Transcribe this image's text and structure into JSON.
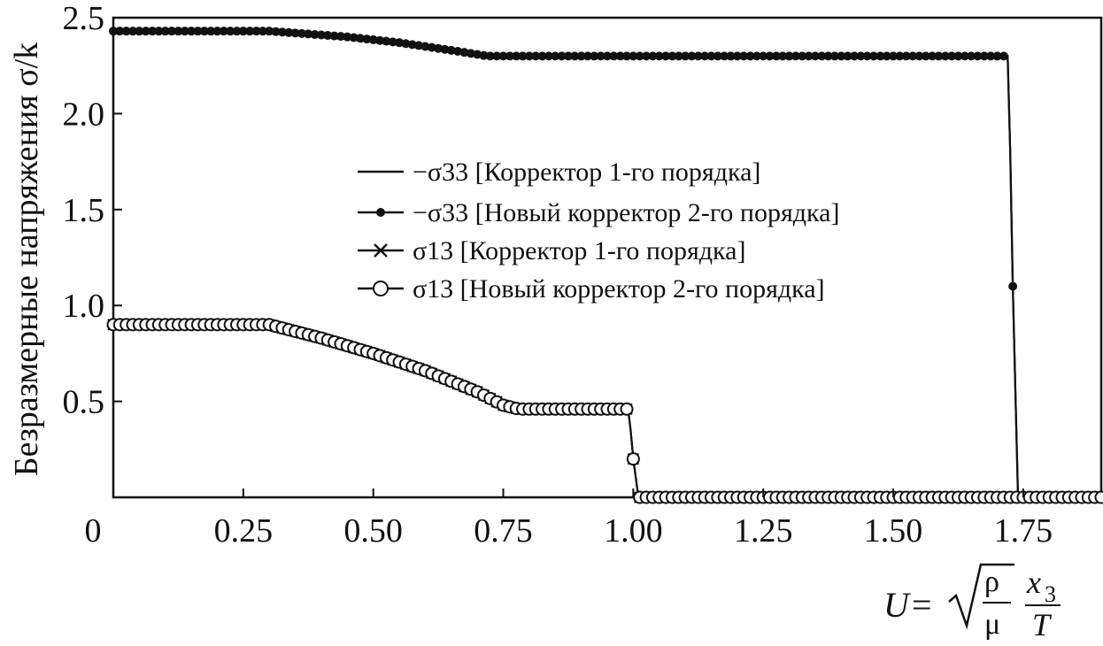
{
  "chart_data": {
    "type": "line",
    "xlabel": "U = √(ρ/μ) · x₃/T",
    "ylabel": "Безразмерные напряжения σ/k",
    "xlim": [
      0,
      1.9
    ],
    "ylim": [
      0,
      2.5
    ],
    "x_ticks": [
      "0",
      "0.25",
      "0.50",
      "0.75",
      "1.00",
      "1.25",
      "1.50",
      "1.75"
    ],
    "x_tick_values": [
      0,
      0.25,
      0.5,
      0.75,
      1.0,
      1.25,
      1.5,
      1.75
    ],
    "y_ticks": [
      "0.5",
      "1.0",
      "1.5",
      "2.0",
      "2.5"
    ],
    "y_tick_values": [
      0.5,
      1.0,
      1.5,
      2.0,
      2.5
    ],
    "grid": false,
    "legend_position": "center",
    "series": [
      {
        "name": "−σ33 [Корректор 1-го порядка]",
        "marker": "none",
        "x": [
          0,
          0.3,
          0.35,
          0.45,
          0.55,
          0.65,
          0.72,
          0.77,
          0.8,
          1.0,
          1.5,
          1.72,
          1.725,
          1.73,
          1.74,
          1.9
        ],
        "y": [
          2.43,
          2.43,
          2.42,
          2.4,
          2.37,
          2.33,
          2.3,
          2.3,
          2.3,
          2.3,
          2.3,
          2.3,
          1.8,
          1.1,
          0.0,
          0.0
        ]
      },
      {
        "name": "−σ33 [Новый корректор 2-го порядка]",
        "marker": "filled-circle",
        "x": [
          0,
          0.3,
          0.35,
          0.45,
          0.55,
          0.65,
          0.72,
          0.77,
          0.8,
          1.0,
          1.5,
          1.72,
          1.725,
          1.73,
          1.74,
          1.9
        ],
        "y": [
          2.43,
          2.43,
          2.42,
          2.4,
          2.37,
          2.33,
          2.3,
          2.3,
          2.3,
          2.3,
          2.3,
          2.3,
          1.8,
          1.1,
          0.0,
          0.0
        ]
      },
      {
        "name": "σ13 [Корректор 1-го порядка]",
        "marker": "cross",
        "x": [
          0,
          0.3,
          0.4,
          0.5,
          0.6,
          0.7,
          0.75,
          0.78,
          0.85,
          0.99,
          0.995,
          1.0,
          1.01,
          1.9
        ],
        "y": [
          0.9,
          0.9,
          0.83,
          0.75,
          0.66,
          0.55,
          0.48,
          0.46,
          0.46,
          0.46,
          0.35,
          0.2,
          0.0,
          0.0
        ]
      },
      {
        "name": "σ13 [Новый корректор 2-го порядка]",
        "marker": "open-circle",
        "x": [
          0,
          0.3,
          0.4,
          0.5,
          0.6,
          0.7,
          0.75,
          0.78,
          0.85,
          0.99,
          0.995,
          1.0,
          1.01,
          1.9
        ],
        "y": [
          0.9,
          0.9,
          0.83,
          0.75,
          0.66,
          0.55,
          0.48,
          0.46,
          0.46,
          0.46,
          0.35,
          0.2,
          0.0,
          0.0
        ]
      }
    ]
  }
}
